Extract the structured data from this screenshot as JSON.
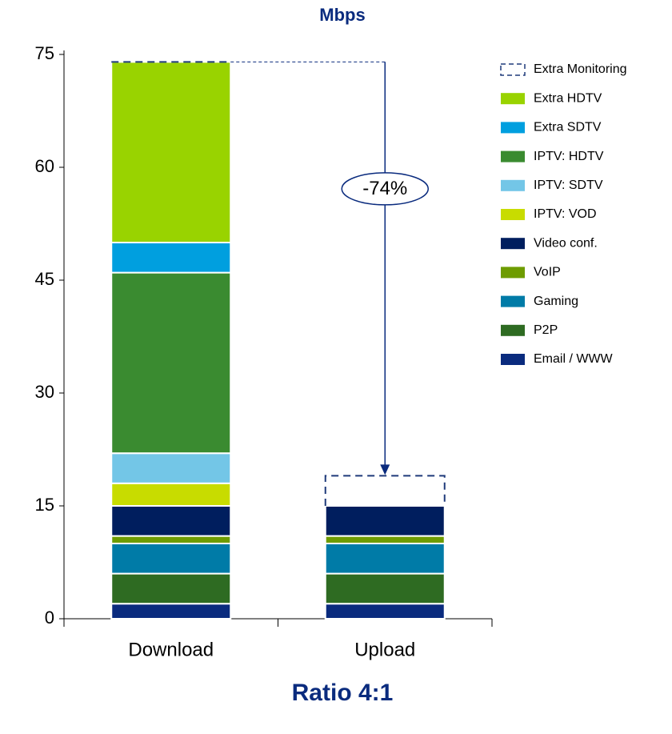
{
  "chart_data": {
    "type": "stacked_bar",
    "title": "Mbps",
    "footer": "Ratio 4:1",
    "annotation": "-74%",
    "categories": [
      "Download",
      "Upload"
    ],
    "series": [
      {
        "name": "Extra Monitoring",
        "color": "#1f3a7a",
        "dashed": true,
        "values": [
          0,
          4
        ]
      },
      {
        "name": "Extra HDTV",
        "color": "#99d300",
        "values": [
          24,
          0
        ]
      },
      {
        "name": "Extra SDTV",
        "color": "#009fdf",
        "values": [
          4,
          0
        ]
      },
      {
        "name": "IPTV: HDTV",
        "color": "#3a8b30",
        "values": [
          24,
          0
        ]
      },
      {
        "name": "IPTV: SDTV",
        "color": "#73c6e7",
        "values": [
          4,
          0
        ]
      },
      {
        "name": "IPTV: VOD",
        "color": "#c8dc00",
        "values": [
          3,
          0
        ]
      },
      {
        "name": "Video conf.",
        "color": "#001e5e",
        "values": [
          4,
          4
        ]
      },
      {
        "name": "VoIP",
        "color": "#6e9c00",
        "values": [
          1,
          1
        ]
      },
      {
        "name": "Gaming",
        "color": "#007ba7",
        "values": [
          4,
          4
        ]
      },
      {
        "name": "P2P",
        "color": "#2e6b22",
        "values": [
          4,
          4
        ]
      },
      {
        "name": "Email / WWW",
        "color": "#0a2b7e",
        "values": [
          2,
          2
        ]
      }
    ],
    "ylim": [
      0,
      75
    ],
    "yticks": [
      0,
      15,
      30,
      45,
      60,
      75
    ]
  }
}
